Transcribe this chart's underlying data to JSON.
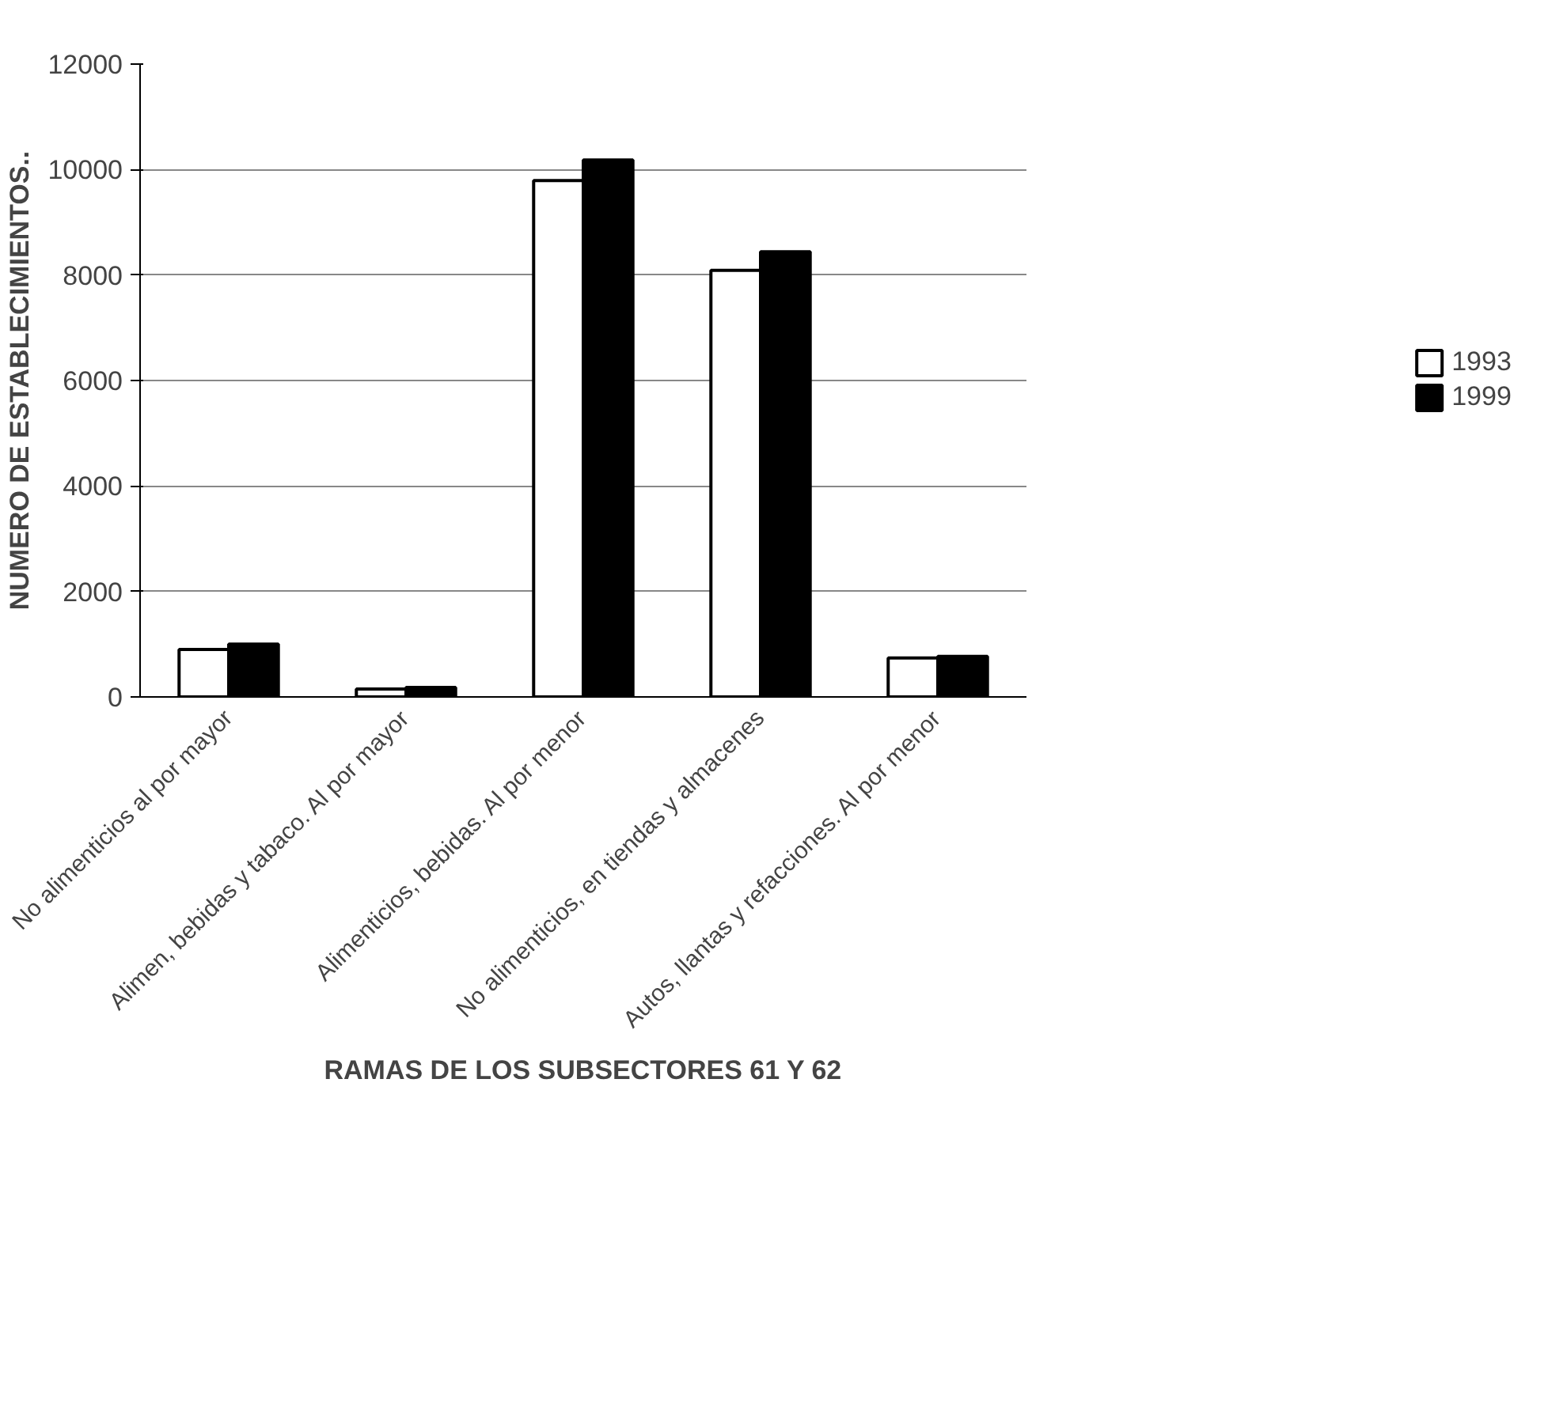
{
  "chart_data": {
    "type": "bar",
    "categories": [
      "No alimenticios al por mayor",
      "Alimen, bebidas y tabaco. Al por mayor",
      "Alimenticios, bebidas. Al por menor",
      "No alimenticios, en tiendas y almacenes",
      "Autos, llantas y refacciones. Al por menor"
    ],
    "series": [
      {
        "name": "1993",
        "color": "#ffffff",
        "values": [
          900,
          150,
          9790,
          8090,
          740
        ]
      },
      {
        "name": "1999",
        "color": "#000000",
        "values": [
          1000,
          180,
          10180,
          8440,
          770
        ]
      }
    ],
    "xlabel": "RAMAS DE LOS SUBSECTORES 61 Y 62",
    "ylabel": "NUMERO DE ESTABLECIMIENTOS..",
    "ylim": [
      0,
      12000
    ],
    "yticks": [
      0,
      2000,
      4000,
      6000,
      8000,
      10000,
      12000
    ],
    "grid": "y",
    "legend": "right"
  }
}
